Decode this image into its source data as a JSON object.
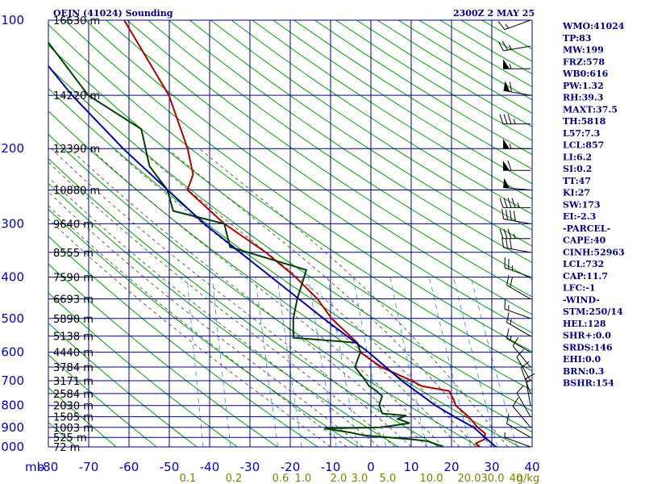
{
  "header": {
    "station": "OEJN (41024) Sounding",
    "time": "2300Z  2 MAY 25"
  },
  "indices": [
    "WMO:41024",
    "TP:83",
    "MW:199",
    "FRZ:578",
    "WB0:616",
    "PW:1.32",
    "RH:39.3",
    "MAXT:37.5",
    "TH:5818",
    "L57:7.3",
    "LCL:857",
    "LI:6.2",
    "SI:0.2",
    "TT:47",
    "KI:27",
    "SW:173",
    "EI:-2.3",
    "-PARCEL-",
    "CAPE:40",
    "CINH:52963",
    "LCL:732",
    "CAP:11.7",
    "LFC:-1",
    "-WIND-",
    "STM:250/14",
    "HEL:128",
    "SHR+:0.0",
    "SRDS:146",
    "EHI:0.0",
    "BRN:0.3",
    "BSHR:154"
  ],
  "chart_data": {
    "type": "line",
    "title": "OEJN (41024) Sounding",
    "subtitle": "2300Z  2 MAY 25",
    "x_axis": {
      "unit_label": "mb",
      "temperature_ticks": [
        -80,
        -70,
        -60,
        -50,
        -40,
        -30,
        -20,
        -10,
        0,
        10,
        20,
        30,
        40
      ],
      "range": [
        -80,
        40
      ]
    },
    "y_axis": {
      "scale": "log-pressure",
      "range": [
        1000,
        100
      ],
      "pressure_ticks": [
        100,
        200,
        300,
        400,
        500,
        600,
        700,
        800,
        900,
        1000
      ]
    },
    "mixing_ratio_labels": [
      "0.1",
      "0.2",
      "0.6",
      "1.0",
      "2.0",
      "3.0",
      "5.0",
      "10.0",
      "20.0",
      "30.0",
      "40",
      "g/kg"
    ],
    "mixing_ratio_values": [
      0.1,
      0.2,
      0.6,
      1.0,
      2.0,
      3.0,
      5.0,
      10.0,
      20.0,
      30.0,
      40.0
    ],
    "height_labels": [
      {
        "p": 100,
        "label": "16630 m"
      },
      {
        "p": 150,
        "label": "14220 m"
      },
      {
        "p": 200,
        "label": "12390 m"
      },
      {
        "p": 250,
        "label": "10880 m"
      },
      {
        "p": 300,
        "label": "9640 m"
      },
      {
        "p": 350,
        "label": "8555 m"
      },
      {
        "p": 400,
        "label": "7590 m"
      },
      {
        "p": 450,
        "label": "6693 m"
      },
      {
        "p": 500,
        "label": "5890 m"
      },
      {
        "p": 550,
        "label": "5138 m"
      },
      {
        "p": 600,
        "label": "4440 m"
      },
      {
        "p": 650,
        "label": "3784 m"
      },
      {
        "p": 700,
        "label": "3171 m"
      },
      {
        "p": 750,
        "label": "2584 m"
      },
      {
        "p": 800,
        "label": "2030 m"
      },
      {
        "p": 850,
        "label": "1505 m"
      },
      {
        "p": 900,
        "label": "1003 m"
      },
      {
        "p": 950,
        "label": "525 m"
      },
      {
        "p": 1000,
        "label": "72 m"
      }
    ],
    "series": [
      {
        "role": "temperature",
        "color": "#b00000",
        "points": [
          [
            1000,
            27.0
          ],
          [
            980,
            26.0
          ],
          [
            960,
            28.0
          ],
          [
            930,
            28.0
          ],
          [
            900,
            26.0
          ],
          [
            850,
            23.5
          ],
          [
            800,
            20.0
          ],
          [
            780,
            19.5
          ],
          [
            740,
            18.0
          ],
          [
            720,
            11.0
          ],
          [
            700,
            8.5
          ],
          [
            650,
            0.5
          ],
          [
            600,
            -5.0
          ],
          [
            570,
            -6.0
          ],
          [
            500,
            -13.0
          ],
          [
            450,
            -17.0
          ],
          [
            400,
            -23.0
          ],
          [
            350,
            -31.0
          ],
          [
            300,
            -42.0
          ],
          [
            250,
            -52.0
          ],
          [
            230,
            -51.0
          ],
          [
            200,
            -53.0
          ],
          [
            150,
            -59.0
          ],
          [
            100,
            -72.0
          ]
        ]
      },
      {
        "role": "dewpoint",
        "color": "#004000",
        "points": [
          [
            1000,
            18.0
          ],
          [
            970,
            14.0
          ],
          [
            960,
            10.0
          ],
          [
            940,
            -2.0
          ],
          [
            925,
            -5.5
          ],
          [
            905,
            -12.0
          ],
          [
            900,
            2.0
          ],
          [
            880,
            9.0
          ],
          [
            860,
            6.0
          ],
          [
            845,
            8.0
          ],
          [
            835,
            2.0
          ],
          [
            800,
            1.0
          ],
          [
            760,
            1.5
          ],
          [
            740,
            0.0
          ],
          [
            720,
            -2.0
          ],
          [
            690,
            -3.5
          ],
          [
            650,
            -6.0
          ],
          [
            600,
            -5.0
          ],
          [
            570,
            -6.0
          ],
          [
            555,
            -22.0
          ],
          [
            500,
            -22.5
          ],
          [
            450,
            -22.0
          ],
          [
            385,
            -20.5
          ],
          [
            340,
            -40.0
          ],
          [
            300,
            -42.0
          ],
          [
            280,
            -55.0
          ],
          [
            250,
            -57.0
          ],
          [
            220,
            -62.0
          ],
          [
            180,
            -65.0
          ],
          [
            150,
            -79.0
          ],
          [
            100,
            -95.0
          ]
        ]
      },
      {
        "role": "parcel",
        "color": "#0000a0",
        "points": [
          [
            1000,
            31.0
          ],
          [
            900,
            25.0
          ],
          [
            850,
            20.0
          ],
          [
            800,
            15.0
          ],
          [
            700,
            6.0
          ],
          [
            600,
            -3.0
          ],
          [
            500,
            -15.0
          ],
          [
            400,
            -29.0
          ],
          [
            300,
            -47.0
          ],
          [
            200,
            -69.0
          ],
          [
            150,
            -83.0
          ],
          [
            100,
            -100.0
          ]
        ]
      }
    ],
    "wind_barbs": [
      {
        "p": 100,
        "dir": 250,
        "spd": 15
      },
      {
        "p": 115,
        "dir": 260,
        "spd": 25
      },
      {
        "p": 130,
        "dir": 270,
        "spd": 55
      },
      {
        "p": 150,
        "dir": 280,
        "spd": 60
      },
      {
        "p": 175,
        "dir": 270,
        "spd": 35
      },
      {
        "p": 200,
        "dir": 270,
        "spd": 55
      },
      {
        "p": 225,
        "dir": 270,
        "spd": 60
      },
      {
        "p": 250,
        "dir": 275,
        "spd": 50
      },
      {
        "p": 275,
        "dir": 270,
        "spd": 45
      },
      {
        "p": 300,
        "dir": 280,
        "spd": 40
      },
      {
        "p": 325,
        "dir": 270,
        "spd": 35
      },
      {
        "p": 350,
        "dir": 280,
        "spd": 30
      },
      {
        "p": 400,
        "dir": 290,
        "spd": 25
      },
      {
        "p": 450,
        "dir": 300,
        "spd": 20
      },
      {
        "p": 500,
        "dir": 290,
        "spd": 15
      },
      {
        "p": 550,
        "dir": 300,
        "spd": 15
      },
      {
        "p": 600,
        "dir": 300,
        "spd": 15
      },
      {
        "p": 650,
        "dir": 320,
        "spd": 10
      },
      {
        "p": 700,
        "dir": 330,
        "spd": 10
      },
      {
        "p": 750,
        "dir": 340,
        "spd": 10
      },
      {
        "p": 800,
        "dir": 350,
        "spd": 15
      },
      {
        "p": 850,
        "dir": 330,
        "spd": 10
      },
      {
        "p": 900,
        "dir": 320,
        "spd": 10
      },
      {
        "p": 950,
        "dir": 300,
        "spd": 10
      },
      {
        "p": 1000,
        "dir": 290,
        "spd": 5
      }
    ],
    "colors": {
      "grid": "#000090",
      "dry_adiabat": "#00a000",
      "moist_adiabat": "#404020",
      "mixing_ratio": "#3080ff",
      "temperature": "#b00000",
      "dewpoint": "#004000",
      "parcel": "#0000a0"
    }
  }
}
